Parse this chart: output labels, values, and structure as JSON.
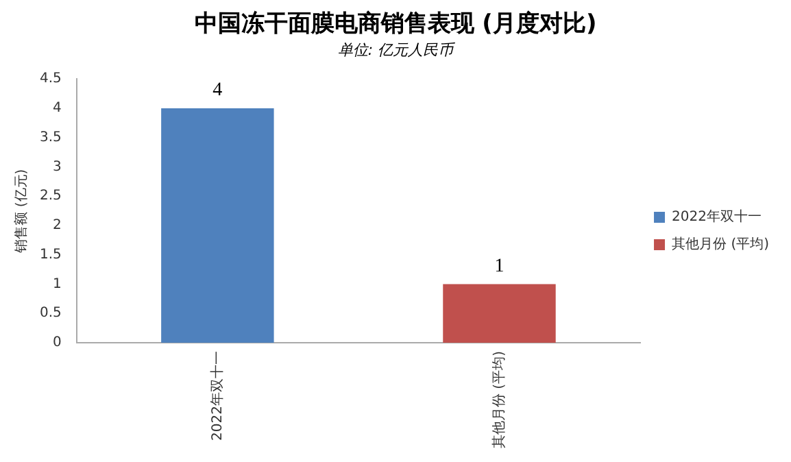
{
  "chart_data": {
    "type": "bar",
    "title": "中国冻干面膜电商销售表现 (月度对比)",
    "subtitle": "单位: 亿元人民币",
    "ylabel": "销售额 (亿元)",
    "categories": [
      "2022年双十一",
      "其他月份 (平均)"
    ],
    "series": [
      {
        "name": "2022年双十一",
        "color": "#4f81bd",
        "values": [
          4,
          null
        ]
      },
      {
        "name": "其他月份 (平均)",
        "color": "#c0504d",
        "values": [
          null,
          1
        ]
      }
    ],
    "ylim": [
      0,
      4.5
    ],
    "yticks": [
      0,
      0.5,
      1,
      1.5,
      2,
      2.5,
      3,
      3.5,
      4,
      4.5
    ],
    "grid": false,
    "legend": "right",
    "data_labels": true
  }
}
